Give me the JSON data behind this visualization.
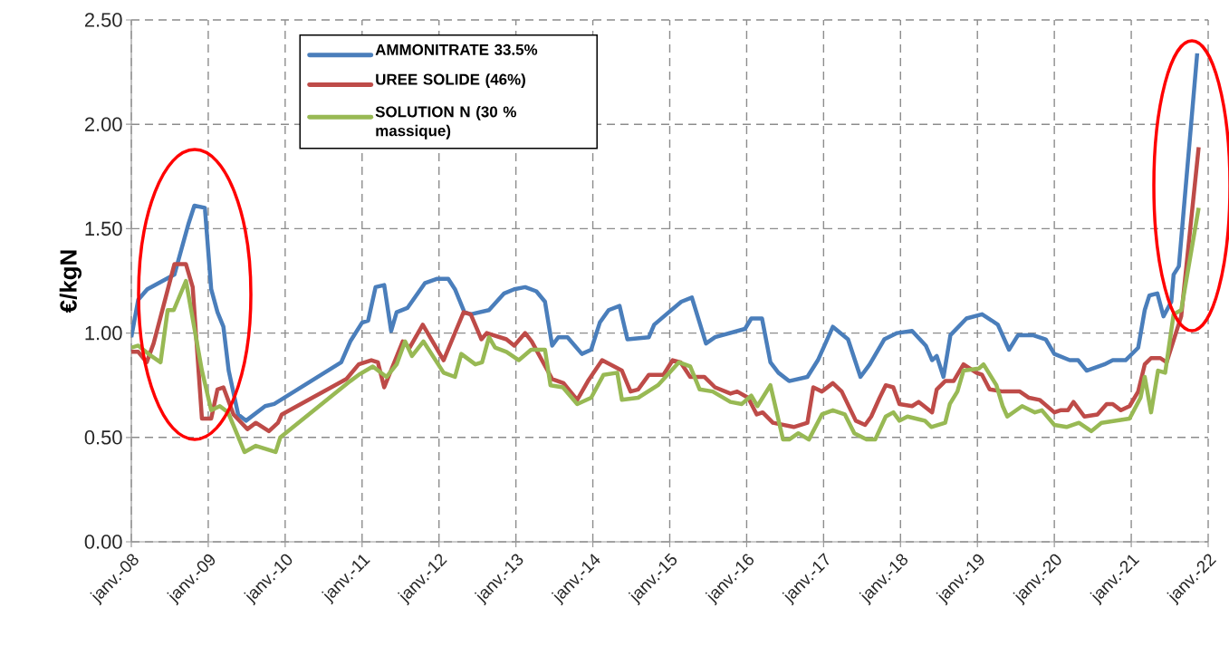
{
  "chart_data": {
    "type": "line",
    "ylabel": "€/kgN",
    "xlim": [
      "2008-01",
      "2022-01"
    ],
    "ylim": [
      0,
      2.5
    ],
    "xticks": [
      {
        "value": "2008-01",
        "label": "janv.-08"
      },
      {
        "value": "2009-01",
        "label": "janv.-09"
      },
      {
        "value": "2010-01",
        "label": "janv.-10"
      },
      {
        "value": "2011-01",
        "label": "janv.-11"
      },
      {
        "value": "2012-01",
        "label": "janv.-12"
      },
      {
        "value": "2013-01",
        "label": "janv.-13"
      },
      {
        "value": "2014-01",
        "label": "janv.-14"
      },
      {
        "value": "2015-01",
        "label": "janv.-15"
      },
      {
        "value": "2016-01",
        "label": "janv.-16"
      },
      {
        "value": "2017-01",
        "label": "janv.-17"
      },
      {
        "value": "2018-01",
        "label": "janv.-18"
      },
      {
        "value": "2019-01",
        "label": "janv.-19"
      },
      {
        "value": "2020-01",
        "label": "janv.-20"
      },
      {
        "value": "2021-01",
        "label": "janv.-21"
      },
      {
        "value": "2022-01",
        "label": "janv.-22"
      }
    ],
    "yticks": [
      {
        "value": 0,
        "label": "0.00"
      },
      {
        "value": 0.5,
        "label": "0.50"
      },
      {
        "value": 1,
        "label": "1.00"
      },
      {
        "value": 1.5,
        "label": "1.50"
      },
      {
        "value": 2,
        "label": "2.00"
      },
      {
        "value": 2.5,
        "label": "2.50"
      }
    ],
    "grid": true,
    "legend": "top left",
    "marker": "none",
    "line_style": "solid",
    "series": [
      {
        "name": "AMMONITRATE 33.5%",
        "color": "#4a7ebb",
        "x": [
          "2008-01-01",
          "2008-02-03",
          "2008-03-17",
          "2008-07-24",
          "2008-09-28",
          "2008-10-27",
          "2008-12-16",
          "2009-01-15",
          "2009-02-14",
          "2009-03-14",
          "2009-04-08",
          "2009-05-23",
          "2009-06-29",
          "2009-09-28",
          "2009-11-10",
          "2010-09-24",
          "2010-11-06",
          "2011-01-01",
          "2011-01-30",
          "2011-03-06",
          "2011-04-16",
          "2011-05-19",
          "2011-06-14",
          "2011-08-04",
          "2011-10-27",
          "2011-12-24",
          "2012-02-14",
          "2012-03-17",
          "2012-05-01",
          "2012-05-31",
          "2012-08-26",
          "2012-11-06",
          "2012-12-24",
          "2013-02-14",
          "2013-04-08",
          "2013-05-19",
          "2013-06-22",
          "2013-07-21",
          "2013-09-03",
          "2013-11-10",
          "2013-12-24",
          "2014-02-03",
          "2014-03-17",
          "2014-05-08",
          "2014-06-14",
          "2014-09-24",
          "2014-10-19",
          "2014-12-16",
          "2015-02-25",
          "2015-04-16",
          "2015-06-22",
          "2015-08-04",
          "2015-12-24",
          "2016-01-23",
          "2016-03-14",
          "2016-04-23",
          "2016-05-31",
          "2016-07-21",
          "2016-10-16",
          "2016-12-05",
          "2017-02-14",
          "2017-04-27",
          "2017-06-25",
          "2017-08-08",
          "2017-10-16",
          "2017-12-16",
          "2018-02-25",
          "2018-05-01",
          "2018-05-31",
          "2018-06-22",
          "2018-07-24",
          "2018-08-26",
          "2018-11-10",
          "2019-01-23",
          "2019-03-10",
          "2019-04-08",
          "2019-05-31",
          "2019-07-13",
          "2019-09-21",
          "2019-11-21",
          "2020-01-01",
          "2020-03-14",
          "2020-04-23",
          "2020-06-03",
          "2020-08-26",
          "2020-10-05",
          "2020-12-05",
          "2021-02-03",
          "2021-03-06",
          "2021-03-28",
          "2021-05-05",
          "2021-06-03",
          "2021-07-10",
          "2021-07-21",
          "2021-08-15",
          "2021-11-10"
        ],
        "values": [
          0.98,
          1.16,
          1.21,
          1.28,
          1.52,
          1.61,
          1.6,
          1.21,
          1.1,
          1.03,
          0.82,
          0.61,
          0.58,
          0.65,
          0.66,
          0.86,
          0.96,
          1.05,
          1.06,
          1.22,
          1.23,
          1.01,
          1.1,
          1.12,
          1.24,
          1.26,
          1.26,
          1.21,
          1.1,
          1.09,
          1.11,
          1.19,
          1.21,
          1.22,
          1.2,
          1.15,
          0.94,
          0.98,
          0.98,
          0.9,
          0.92,
          1.05,
          1.11,
          1.13,
          0.97,
          0.98,
          1.04,
          1.09,
          1.15,
          1.17,
          0.95,
          0.98,
          1.02,
          1.07,
          1.07,
          0.86,
          0.81,
          0.77,
          0.79,
          0.87,
          1.03,
          0.97,
          0.79,
          0.85,
          0.97,
          1.0,
          1.01,
          0.94,
          0.87,
          0.89,
          0.79,
          0.99,
          1.07,
          1.09,
          1.06,
          1.04,
          0.92,
          0.99,
          0.99,
          0.97,
          0.9,
          0.87,
          0.87,
          0.82,
          0.85,
          0.87,
          0.87,
          0.93,
          1.11,
          1.18,
          1.19,
          1.08,
          1.15,
          1.28,
          1.32,
          2.34
        ]
      },
      {
        "name": "UREE SOLIDE (46%)",
        "color": "#be4b48",
        "x": [
          "2008-01-01",
          "2008-02-03",
          "2008-03-14",
          "2008-04-16",
          "2008-07-24",
          "2008-09-17",
          "2008-10-19",
          "2008-12-02",
          "2009-01-15",
          "2009-02-14",
          "2009-03-14",
          "2009-05-01",
          "2009-07-06",
          "2009-08-15",
          "2009-10-16",
          "2009-11-28",
          "2009-12-16",
          "2010-10-19",
          "2010-12-16",
          "2011-02-14",
          "2011-03-17",
          "2011-04-16",
          "2011-07-13",
          "2011-08-15",
          "2011-10-16",
          "2012-01-23",
          "2012-04-27",
          "2012-05-31",
          "2012-07-21",
          "2012-08-15",
          "2012-11-17",
          "2012-12-24",
          "2013-02-14",
          "2013-03-17",
          "2013-06-22",
          "2013-08-15",
          "2013-10-19",
          "2013-12-09",
          "2014-02-14",
          "2014-05-19",
          "2014-06-29",
          "2014-08-04",
          "2014-09-24",
          "2014-12-02",
          "2015-01-15",
          "2015-02-21",
          "2015-04-08",
          "2015-06-14",
          "2015-08-04",
          "2015-10-16",
          "2015-11-17",
          "2016-01-08",
          "2016-02-18",
          "2016-03-17",
          "2016-05-05",
          "2016-08-12",
          "2016-10-16",
          "2016-11-13",
          "2016-12-24",
          "2017-02-14",
          "2017-03-28",
          "2017-06-03",
          "2017-07-17",
          "2017-08-15",
          "2017-09-24",
          "2017-10-23",
          "2017-11-28",
          "2017-12-27",
          "2018-02-25",
          "2018-03-28",
          "2018-05-31",
          "2018-06-22",
          "2018-08-01",
          "2018-09-10",
          "2018-10-27",
          "2018-12-27",
          "2019-01-23",
          "2019-02-28",
          "2019-05-01",
          "2019-07-21",
          "2019-09-03",
          "2019-10-23",
          "2020-01-01",
          "2020-01-30",
          "2020-03-06",
          "2020-04-01",
          "2020-05-23",
          "2020-07-24",
          "2020-09-06",
          "2020-10-05",
          "2020-11-13",
          "2020-12-24",
          "2021-02-03",
          "2021-03-06",
          "2021-04-05",
          "2021-05-19",
          "2021-06-18",
          "2021-08-26",
          "2021-11-17"
        ],
        "values": [
          0.91,
          0.91,
          0.86,
          0.95,
          1.33,
          1.33,
          1.22,
          0.59,
          0.59,
          0.73,
          0.74,
          0.61,
          0.54,
          0.57,
          0.53,
          0.57,
          0.61,
          0.78,
          0.85,
          0.87,
          0.86,
          0.74,
          0.96,
          0.93,
          1.04,
          0.87,
          1.1,
          1.09,
          0.97,
          1.0,
          0.97,
          0.94,
          1.0,
          0.96,
          0.78,
          0.76,
          0.68,
          0.77,
          0.87,
          0.82,
          0.72,
          0.73,
          0.8,
          0.8,
          0.87,
          0.86,
          0.79,
          0.79,
          0.74,
          0.71,
          0.72,
          0.69,
          0.61,
          0.62,
          0.57,
          0.55,
          0.57,
          0.74,
          0.72,
          0.76,
          0.72,
          0.58,
          0.56,
          0.6,
          0.69,
          0.75,
          0.74,
          0.66,
          0.65,
          0.67,
          0.62,
          0.73,
          0.77,
          0.77,
          0.85,
          0.81,
          0.8,
          0.73,
          0.72,
          0.72,
          0.69,
          0.68,
          0.62,
          0.63,
          0.63,
          0.67,
          0.6,
          0.61,
          0.66,
          0.66,
          0.63,
          0.65,
          0.72,
          0.85,
          0.88,
          0.88,
          0.86,
          1.08,
          1.89
        ]
      },
      {
        "name": "SOLUTION N (30 % massique)",
        "color": "#98b954",
        "x": [
          "2008-01-01",
          "2008-02-03",
          "2008-04-05",
          "2008-05-19",
          "2008-06-22",
          "2008-07-21",
          "2008-09-17",
          "2008-12-02",
          "2009-01-15",
          "2009-02-25",
          "2009-04-05",
          "2009-06-22",
          "2009-08-15",
          "2009-11-17",
          "2009-12-09",
          "2010-11-06",
          "2010-12-16",
          "2011-02-21",
          "2011-04-27",
          "2011-06-14",
          "2011-07-24",
          "2011-08-26",
          "2011-10-19",
          "2012-01-23",
          "2012-03-17",
          "2012-04-16",
          "2012-06-22",
          "2012-07-24",
          "2012-08-26",
          "2012-09-24",
          "2012-11-17",
          "2013-01-15",
          "2013-03-14",
          "2013-05-19",
          "2013-06-14",
          "2013-08-12",
          "2013-10-19",
          "2013-12-24",
          "2014-02-21",
          "2014-04-27",
          "2014-05-19",
          "2014-08-04",
          "2014-11-06",
          "2015-02-14",
          "2015-04-08",
          "2015-05-23",
          "2015-07-24",
          "2015-10-16",
          "2015-12-09",
          "2016-01-23",
          "2016-02-21",
          "2016-04-23",
          "2016-06-22",
          "2016-07-21",
          "2016-09-03",
          "2016-10-23",
          "2016-12-24",
          "2017-02-14",
          "2017-04-12",
          "2017-05-27",
          "2017-07-24",
          "2017-09-03",
          "2017-10-23",
          "2017-11-28",
          "2017-12-27",
          "2018-02-03",
          "2018-04-27",
          "2018-05-27",
          "2018-08-01",
          "2018-08-23",
          "2018-09-28",
          "2018-10-27",
          "2019-01-08",
          "2019-01-30",
          "2019-04-01",
          "2019-05-01",
          "2019-05-23",
          "2019-08-01",
          "2019-10-01",
          "2019-11-03",
          "2020-01-01",
          "2020-02-28",
          "2020-04-27",
          "2020-06-25",
          "2020-08-12",
          "2020-12-24",
          "2021-02-14",
          "2021-03-06",
          "2021-04-05",
          "2021-05-08",
          "2021-06-11",
          "2021-07-21",
          "2021-08-26",
          "2021-11-17"
        ],
        "values": [
          0.93,
          0.94,
          0.89,
          0.86,
          1.11,
          1.11,
          1.25,
          0.82,
          0.63,
          0.65,
          0.62,
          0.43,
          0.46,
          0.43,
          0.5,
          0.77,
          0.8,
          0.84,
          0.79,
          0.85,
          0.96,
          0.89,
          0.96,
          0.81,
          0.79,
          0.9,
          0.85,
          0.86,
          0.98,
          0.93,
          0.91,
          0.87,
          0.92,
          0.92,
          0.75,
          0.74,
          0.66,
          0.69,
          0.8,
          0.81,
          0.68,
          0.69,
          0.75,
          0.86,
          0.84,
          0.73,
          0.72,
          0.67,
          0.66,
          0.7,
          0.65,
          0.75,
          0.49,
          0.49,
          0.52,
          0.49,
          0.61,
          0.63,
          0.61,
          0.52,
          0.49,
          0.49,
          0.6,
          0.62,
          0.58,
          0.6,
          0.58,
          0.55,
          0.57,
          0.66,
          0.72,
          0.82,
          0.83,
          0.85,
          0.75,
          0.65,
          0.6,
          0.65,
          0.62,
          0.63,
          0.56,
          0.55,
          0.57,
          0.53,
          0.57,
          0.59,
          0.69,
          0.79,
          0.62,
          0.82,
          0.81,
          1.09,
          1.11,
          1.6
        ]
      }
    ]
  }
}
